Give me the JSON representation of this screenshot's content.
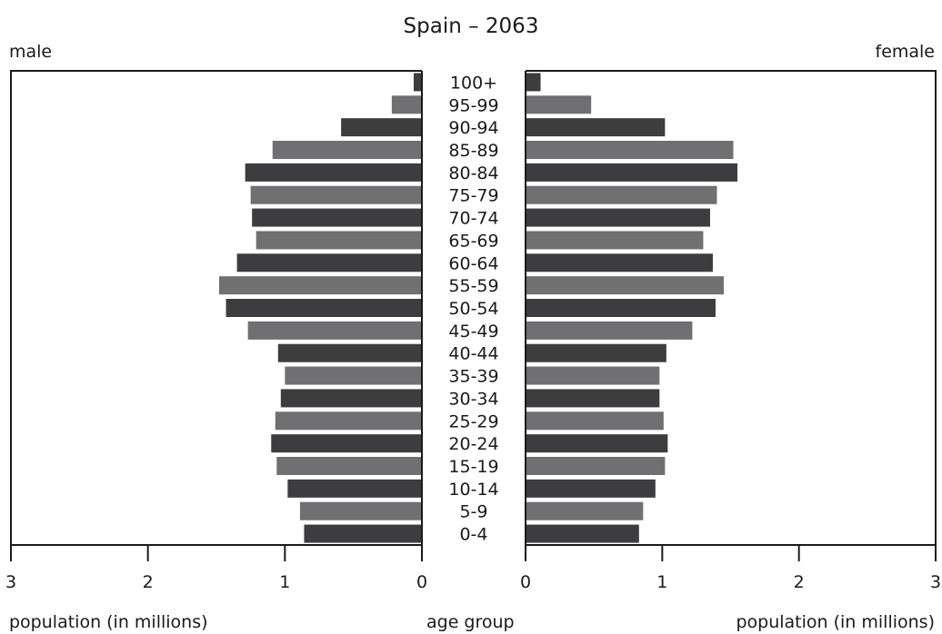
{
  "chart_data": {
    "type": "bar",
    "title": "Spain – 2063",
    "left_label": "male",
    "right_label": "female",
    "xlabel_left": "population (in millions)",
    "xlabel_center": "age group",
    "xlabel_right": "population (in millions)",
    "xlim": [
      0,
      3
    ],
    "x_ticks": [
      "0",
      "1",
      "2",
      "3"
    ],
    "categories": [
      "100+",
      "95-99",
      "90-94",
      "85-89",
      "80-84",
      "75-79",
      "70-74",
      "65-69",
      "60-64",
      "55-59",
      "50-54",
      "45-49",
      "40-44",
      "35-39",
      "30-34",
      "25-29",
      "20-24",
      "15-19",
      "10-14",
      "5-9",
      "0-4"
    ],
    "series": [
      {
        "name": "male",
        "values": [
          0.06,
          0.22,
          0.59,
          1.09,
          1.29,
          1.25,
          1.24,
          1.21,
          1.35,
          1.48,
          1.43,
          1.27,
          1.05,
          1.0,
          1.03,
          1.07,
          1.1,
          1.06,
          0.98,
          0.89,
          0.86
        ]
      },
      {
        "name": "female",
        "values": [
          0.11,
          0.48,
          1.02,
          1.52,
          1.55,
          1.4,
          1.35,
          1.3,
          1.37,
          1.45,
          1.39,
          1.22,
          1.03,
          0.98,
          0.98,
          1.01,
          1.04,
          1.02,
          0.95,
          0.86,
          0.83
        ]
      }
    ],
    "colors": {
      "dark": "#3d3d3f",
      "light": "#707073",
      "axis": "#1a1a1a"
    }
  }
}
